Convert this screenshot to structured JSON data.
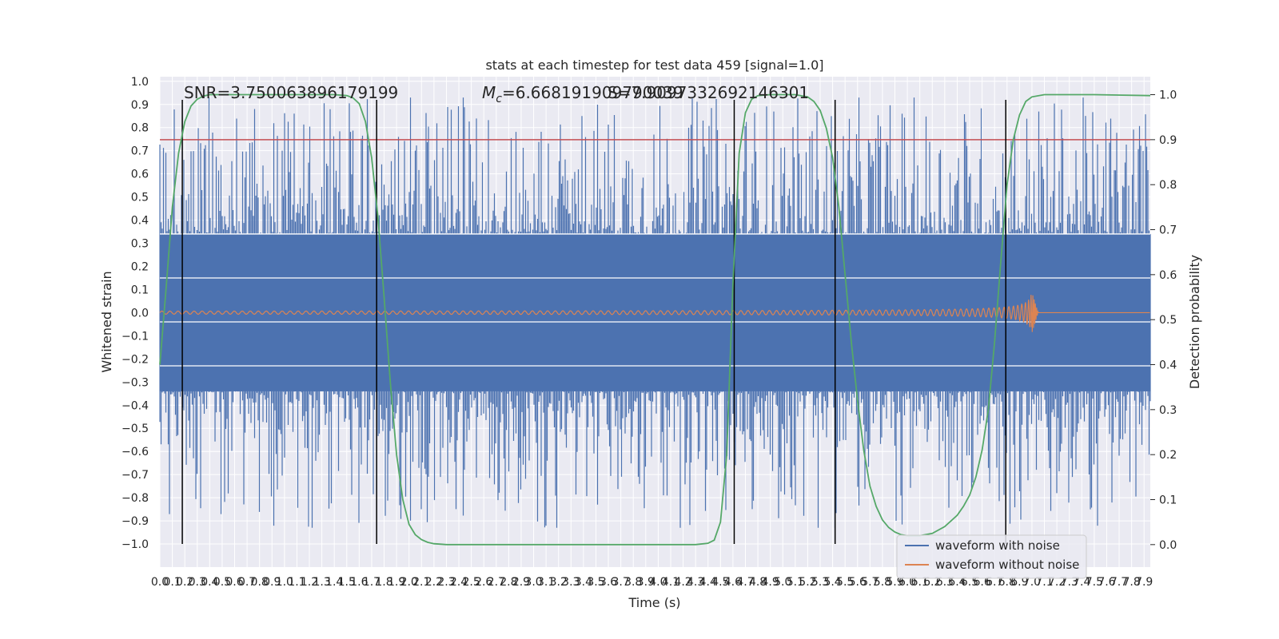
{
  "chart_data": {
    "type": "line",
    "title": "stats at each timestep for test data 459 [signal=1.0]",
    "xlabel": "Time (s)",
    "ylabel": "Whitened strain",
    "y2label": "Detection probability",
    "xlim": [
      0,
      7.95
    ],
    "ylim": [
      -1.1,
      1.02
    ],
    "y2lim": [
      -0.05,
      1.04
    ],
    "x_ticks": [
      0.0,
      0.1,
      0.2,
      0.3,
      0.4,
      0.5,
      0.6,
      0.7,
      0.8,
      0.9,
      1.0,
      1.1,
      1.2,
      1.3,
      1.4,
      1.5,
      1.6,
      1.7,
      1.8,
      1.9,
      2.0,
      2.1,
      2.2,
      2.3,
      2.4,
      2.5,
      2.6,
      2.7,
      2.8,
      2.9,
      3.0,
      3.1,
      3.2,
      3.3,
      3.4,
      3.5,
      3.6,
      3.7,
      3.8,
      3.9,
      4.0,
      4.1,
      4.2,
      4.3,
      4.4,
      4.5,
      4.6,
      4.7,
      4.8,
      4.9,
      5.0,
      5.1,
      5.2,
      5.3,
      5.4,
      5.5,
      5.6,
      5.7,
      5.8,
      5.9,
      6.0,
      6.1,
      6.2,
      6.3,
      6.4,
      6.5,
      6.6,
      6.7,
      6.8,
      6.9,
      7.0,
      7.1,
      7.2,
      7.3,
      7.4,
      7.5,
      7.6,
      7.7,
      7.8,
      7.9
    ],
    "y_ticks": [
      -1.0,
      -0.9,
      -0.8,
      -0.7,
      -0.6,
      -0.5,
      -0.4,
      -0.3,
      -0.2,
      -0.1,
      0.0,
      0.1,
      0.2,
      0.3,
      0.4,
      0.5,
      0.6,
      0.7,
      0.8,
      0.9,
      1.0
    ],
    "y2_ticks": [
      0.0,
      0.1,
      0.2,
      0.3,
      0.4,
      0.5,
      0.6,
      0.7,
      0.8,
      0.9,
      1.0
    ],
    "annotations": {
      "snr": "SNR=3.750063896179199",
      "mc_prefix": "M",
      "mc_sub": "c",
      "mc_value": "=6.668191909790039",
      "third": "S=7.9097332692146301"
    },
    "threshold": {
      "value": 0.9,
      "axis": "right",
      "color": "#c44e52"
    },
    "vertical_markers_s": [
      0.18,
      1.74,
      4.61,
      5.42,
      6.79
    ],
    "detection_probability": {
      "x": [
        0.0,
        0.05,
        0.1,
        0.15,
        0.2,
        0.25,
        0.3,
        0.35,
        0.4,
        0.5,
        0.6,
        0.8,
        1.0,
        1.2,
        1.4,
        1.5,
        1.55,
        1.6,
        1.65,
        1.7,
        1.75,
        1.8,
        1.85,
        1.9,
        1.95,
        2.0,
        2.05,
        2.1,
        2.15,
        2.2,
        2.3,
        2.5,
        3.0,
        3.5,
        4.0,
        4.3,
        4.4,
        4.45,
        4.5,
        4.55,
        4.6,
        4.65,
        4.7,
        4.75,
        4.8,
        4.9,
        5.0,
        5.1,
        5.2,
        5.25,
        5.3,
        5.35,
        5.4,
        5.45,
        5.5,
        5.55,
        5.6,
        5.65,
        5.7,
        5.75,
        5.8,
        5.85,
        5.9,
        5.95,
        6.0,
        6.1,
        6.2,
        6.3,
        6.4,
        6.45,
        6.5,
        6.55,
        6.6,
        6.65,
        6.7,
        6.75,
        6.8,
        6.85,
        6.9,
        6.95,
        7.0,
        7.1,
        7.5,
        7.95
      ],
      "values": [
        0.4,
        0.57,
        0.75,
        0.87,
        0.94,
        0.975,
        0.99,
        0.997,
        1.0,
        1.0,
        1.0,
        1.0,
        1.0,
        1.0,
        1.0,
        0.998,
        0.993,
        0.98,
        0.94,
        0.86,
        0.73,
        0.55,
        0.36,
        0.2,
        0.1,
        0.045,
        0.022,
        0.011,
        0.005,
        0.002,
        0.0,
        0.0,
        0.0,
        0.0,
        0.0,
        0.0,
        0.003,
        0.01,
        0.05,
        0.2,
        0.58,
        0.87,
        0.96,
        0.99,
        0.998,
        1.0,
        1.0,
        1.0,
        0.995,
        0.985,
        0.965,
        0.925,
        0.86,
        0.75,
        0.6,
        0.45,
        0.32,
        0.21,
        0.13,
        0.085,
        0.055,
        0.038,
        0.028,
        0.022,
        0.02,
        0.02,
        0.025,
        0.04,
        0.065,
        0.085,
        0.11,
        0.15,
        0.21,
        0.3,
        0.45,
        0.63,
        0.8,
        0.9,
        0.955,
        0.985,
        0.995,
        1.0,
        1.0,
        0.998
      ],
      "color": "#55a868"
    },
    "series": [
      {
        "name": "waveform with noise",
        "color": "#4c72b0",
        "fill_level": 0.34,
        "peak_level": 0.6,
        "clipped_bands": [
          0.34,
          0.15,
          -0.04,
          -0.23
        ]
      },
      {
        "name": "waveform without noise",
        "color": "#dd8452",
        "peak_time_s": 7.0,
        "peak_amplitude": 0.088,
        "merger_end_s": 7.05
      }
    ],
    "legend": {
      "placement": "lower-right",
      "items": [
        "waveform with noise",
        "waveform without noise"
      ]
    },
    "grid": true,
    "background": "#eaeaf2"
  }
}
